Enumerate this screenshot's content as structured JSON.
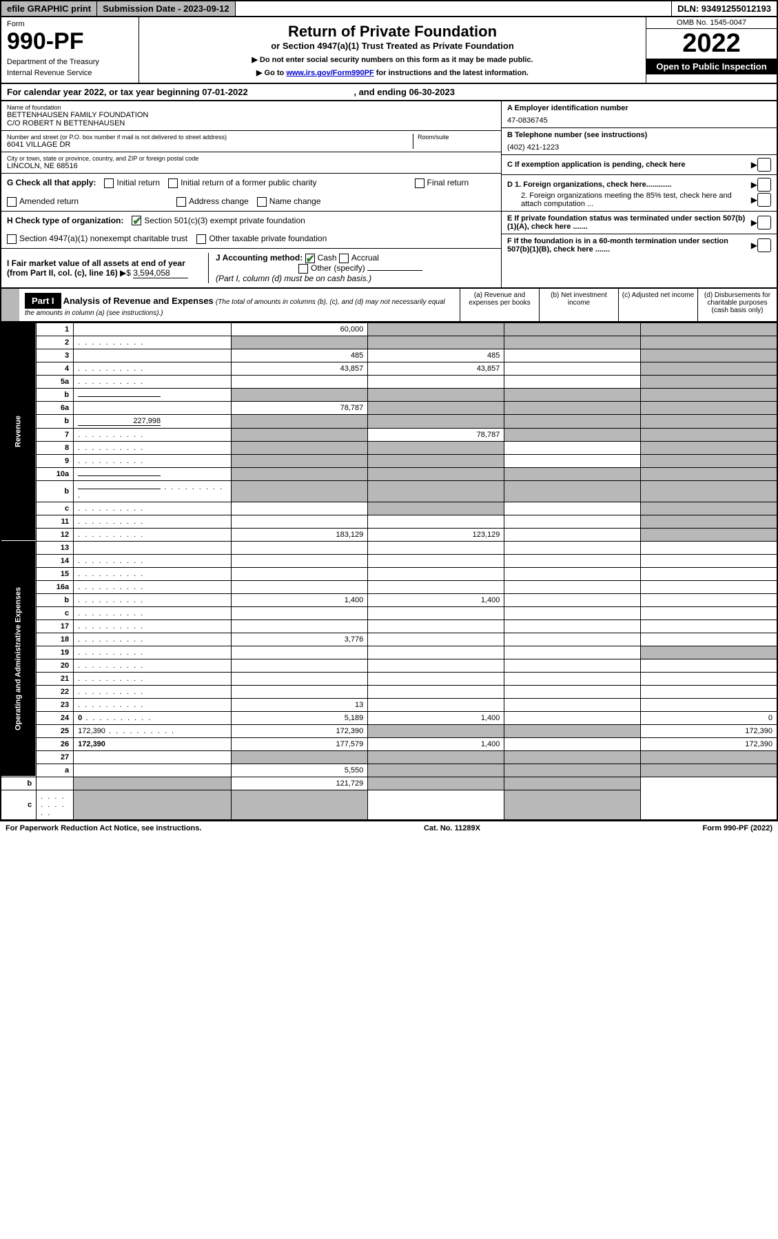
{
  "topbar": {
    "efile": "efile GRAPHIC print",
    "submission_label": "Submission Date - 2023-09-12",
    "dln": "DLN: 93491255012193"
  },
  "header": {
    "form_word": "Form",
    "form_no": "990-PF",
    "dept": "Department of the Treasury",
    "irs": "Internal Revenue Service",
    "title": "Return of Private Foundation",
    "subtitle": "or Section 4947(a)(1) Trust Treated as Private Foundation",
    "instr1": "▶ Do not enter social security numbers on this form as it may be made public.",
    "instr2_pre": "▶ Go to ",
    "instr2_link": "www.irs.gov/Form990PF",
    "instr2_post": " for instructions and the latest information.",
    "omb": "OMB No. 1545-0047",
    "year": "2022",
    "open": "Open to Public Inspection"
  },
  "calyear": {
    "text_pre": "For calendar year 2022, or tax year beginning ",
    "begin": "07-01-2022",
    "mid": " , and ending ",
    "end": "06-30-2023"
  },
  "info": {
    "name_label": "Name of foundation",
    "name1": "BETTENHAUSEN FAMILY FOUNDATION",
    "name2": "C/O ROBERT N BETTENHAUSEN",
    "addr_label": "Number and street (or P.O. box number if mail is not delivered to street address)",
    "addr": "6041 VILLAGE DR",
    "room_label": "Room/suite",
    "city_label": "City or town, state or province, country, and ZIP or foreign postal code",
    "city": "LINCOLN, NE  68516",
    "ein_label": "A Employer identification number",
    "ein": "47-0836745",
    "phone_label": "B Telephone number (see instructions)",
    "phone": "(402) 421-1223",
    "c_label": "C If exemption application is pending, check here",
    "d1": "D 1. Foreign organizations, check here............",
    "d2": "2. Foreign organizations meeting the 85% test, check here and attach computation ...",
    "e_label": "E  If private foundation status was terminated under section 507(b)(1)(A), check here .......",
    "f_label": "F  If the foundation is in a 60-month termination under section 507(b)(1)(B), check here .......",
    "g_label": "G Check all that apply:",
    "g_opts": [
      "Initial return",
      "Initial return of a former public charity",
      "Final return",
      "Amended return",
      "Address change",
      "Name change"
    ],
    "h_label": "H Check type of organization:",
    "h1": "Section 501(c)(3) exempt private foundation",
    "h2": "Section 4947(a)(1) nonexempt charitable trust",
    "h3": "Other taxable private foundation",
    "i_label": "I Fair market value of all assets at end of year (from Part II, col. (c), line 16)",
    "i_val": "3,594,058",
    "j_label": "J Accounting method:",
    "j_cash": "Cash",
    "j_accrual": "Accrual",
    "j_other": "Other (specify)",
    "j_note": "(Part I, column (d) must be on cash basis.)"
  },
  "part1": {
    "label": "Part I",
    "title": "Analysis of Revenue and Expenses",
    "note": "(The total of amounts in columns (b), (c), and (d) may not necessarily equal the amounts in column (a) (see instructions).)",
    "col_a": "(a)  Revenue and expenses per books",
    "col_b": "(b)  Net investment income",
    "col_c": "(c)  Adjusted net income",
    "col_d": "(d)  Disbursements for charitable purposes (cash basis only)"
  },
  "sections": {
    "revenue": "Revenue",
    "opex": "Operating and Administrative Expenses"
  },
  "rows": [
    {
      "n": "1",
      "d": "",
      "a": "60,000",
      "b": "",
      "c": "",
      "shade_bcd": true
    },
    {
      "n": "2",
      "d": "",
      "dots": true,
      "a": "",
      "b": "",
      "c": "",
      "shade_all": true
    },
    {
      "n": "3",
      "d": "",
      "a": "485",
      "b": "485",
      "c": "",
      "shade_d": true
    },
    {
      "n": "4",
      "d": "",
      "dots": true,
      "a": "43,857",
      "b": "43,857",
      "c": "",
      "shade_d": true
    },
    {
      "n": "5a",
      "d": "",
      "dots": true,
      "a": "",
      "b": "",
      "c": "",
      "shade_d": true
    },
    {
      "n": "b",
      "d": "",
      "inline_blank": true,
      "a": "",
      "b": "",
      "c": "",
      "shade_all": true
    },
    {
      "n": "6a",
      "d": "",
      "a": "78,787",
      "b": "",
      "c": "",
      "shade_bcd": true
    },
    {
      "n": "b",
      "d": "",
      "inline_val": "227,998",
      "a": "",
      "b": "",
      "c": "",
      "shade_all": true
    },
    {
      "n": "7",
      "d": "",
      "dots": true,
      "a": "",
      "b": "78,787",
      "c": "",
      "shade_a": true,
      "shade_cd": true
    },
    {
      "n": "8",
      "d": "",
      "dots": true,
      "a": "",
      "b": "",
      "c": "",
      "shade_ab": true,
      "shade_d": true
    },
    {
      "n": "9",
      "d": "",
      "dots": true,
      "a": "",
      "b": "",
      "c": "",
      "shade_ab": true,
      "shade_d": true
    },
    {
      "n": "10a",
      "d": "",
      "inline_blank": true,
      "a": "",
      "b": "",
      "c": "",
      "shade_all": true
    },
    {
      "n": "b",
      "d": "",
      "dots": true,
      "inline_blank": true,
      "a": "",
      "b": "",
      "c": "",
      "shade_all": true
    },
    {
      "n": "c",
      "d": "",
      "dots": true,
      "a": "",
      "b": "",
      "c": "",
      "shade_b": true,
      "shade_d": true
    },
    {
      "n": "11",
      "d": "",
      "dots": true,
      "a": "",
      "b": "",
      "c": "",
      "shade_d": true
    },
    {
      "n": "12",
      "d": "",
      "dots": true,
      "bold": true,
      "a": "183,129",
      "b": "123,129",
      "c": "",
      "shade_d": true
    },
    {
      "n": "13",
      "d": "",
      "a": "",
      "b": "",
      "c": ""
    },
    {
      "n": "14",
      "d": "",
      "dots": true,
      "a": "",
      "b": "",
      "c": ""
    },
    {
      "n": "15",
      "d": "",
      "dots": true,
      "a": "",
      "b": "",
      "c": ""
    },
    {
      "n": "16a",
      "d": "",
      "dots": true,
      "a": "",
      "b": "",
      "c": ""
    },
    {
      "n": "b",
      "d": "",
      "dots": true,
      "a": "1,400",
      "b": "1,400",
      "c": ""
    },
    {
      "n": "c",
      "d": "",
      "dots": true,
      "a": "",
      "b": "",
      "c": ""
    },
    {
      "n": "17",
      "d": "",
      "dots": true,
      "a": "",
      "b": "",
      "c": ""
    },
    {
      "n": "18",
      "d": "",
      "dots": true,
      "a": "3,776",
      "b": "",
      "c": ""
    },
    {
      "n": "19",
      "d": "",
      "dots": true,
      "a": "",
      "b": "",
      "c": "",
      "shade_d": true
    },
    {
      "n": "20",
      "d": "",
      "dots": true,
      "a": "",
      "b": "",
      "c": ""
    },
    {
      "n": "21",
      "d": "",
      "dots": true,
      "a": "",
      "b": "",
      "c": ""
    },
    {
      "n": "22",
      "d": "",
      "dots": true,
      "a": "",
      "b": "",
      "c": ""
    },
    {
      "n": "23",
      "d": "",
      "dots": true,
      "a": "13",
      "b": "",
      "c": ""
    },
    {
      "n": "24",
      "d": "0",
      "dots": true,
      "bold": true,
      "a": "5,189",
      "b": "1,400",
      "c": ""
    },
    {
      "n": "25",
      "d": "172,390",
      "dots": true,
      "a": "172,390",
      "b": "",
      "c": "",
      "shade_bc": true
    },
    {
      "n": "26",
      "d": "172,390",
      "bold": true,
      "a": "177,579",
      "b": "1,400",
      "c": ""
    },
    {
      "n": "27",
      "d": "",
      "a": "",
      "b": "",
      "c": "",
      "shade_all": true
    },
    {
      "n": "a",
      "d": "",
      "bold": true,
      "a": "5,550",
      "b": "",
      "c": "",
      "shade_bcd": true
    },
    {
      "n": "b",
      "d": "",
      "bold": true,
      "a": "",
      "b": "121,729",
      "c": "",
      "shade_a": true,
      "shade_cd": true
    },
    {
      "n": "c",
      "d": "",
      "dots": true,
      "bold": true,
      "a": "",
      "b": "",
      "c": "",
      "shade_ab": true,
      "shade_d": true
    }
  ],
  "footer": {
    "left": "For Paperwork Reduction Act Notice, see instructions.",
    "mid": "Cat. No. 11289X",
    "right": "Form 990-PF (2022)"
  }
}
